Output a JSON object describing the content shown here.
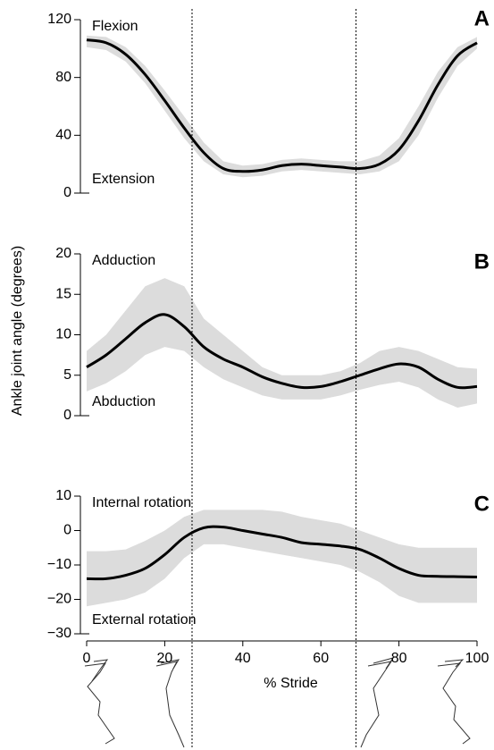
{
  "figure": {
    "ylabel": "Ankle joint angle (degrees)",
    "event_lines": [
      27,
      69
    ]
  },
  "chart_data": [
    {
      "type": "line",
      "panel": "A",
      "top_label": "Flexion",
      "bottom_label": "Extension",
      "x": [
        0,
        5,
        10,
        15,
        20,
        25,
        30,
        35,
        40,
        45,
        50,
        55,
        60,
        65,
        70,
        75,
        80,
        85,
        90,
        95,
        100
      ],
      "xlim": [
        0,
        100
      ],
      "ylim": [
        0,
        120
      ],
      "yticks": [
        0,
        40,
        80,
        120
      ],
      "series": [
        {
          "color": "#000000",
          "band_color": "#dcdcdc",
          "values": [
            106,
            104,
            96,
            82,
            64,
            45,
            28,
            17,
            15,
            16,
            19,
            20,
            19,
            18,
            17,
            20,
            30,
            50,
            75,
            95,
            104
          ],
          "lower": [
            101,
            99,
            91,
            76,
            57,
            38,
            22,
            13,
            11,
            12,
            15,
            16,
            15,
            14,
            13,
            15,
            22,
            40,
            66,
            88,
            100
          ],
          "upper": [
            109,
            108,
            101,
            88,
            71,
            53,
            35,
            22,
            19,
            20,
            23,
            24,
            23,
            22,
            22,
            26,
            38,
            60,
            84,
            101,
            108
          ]
        }
      ]
    },
    {
      "type": "line",
      "panel": "B",
      "top_label": "Adduction",
      "bottom_label": "Abduction",
      "x": [
        0,
        5,
        10,
        15,
        20,
        25,
        30,
        35,
        40,
        45,
        50,
        55,
        60,
        65,
        70,
        75,
        80,
        85,
        90,
        95,
        100
      ],
      "xlim": [
        0,
        100
      ],
      "ylim": [
        0,
        20
      ],
      "yticks": [
        0,
        5,
        10,
        15,
        20
      ],
      "series": [
        {
          "color": "#000000",
          "band_color": "#dcdcdc",
          "values": [
            6,
            7.5,
            9.5,
            11.5,
            12.5,
            11,
            8.5,
            7,
            6,
            4.8,
            4,
            3.5,
            3.6,
            4.2,
            5,
            5.8,
            6.4,
            6,
            4.5,
            3.5,
            3.6
          ],
          "lower": [
            3,
            4,
            5.5,
            7.5,
            8.5,
            8,
            6,
            4.5,
            3.5,
            2.5,
            2,
            2,
            2,
            2.5,
            3.2,
            3.8,
            4.2,
            3.5,
            2,
            1,
            1.5
          ],
          "upper": [
            8,
            10,
            13,
            16,
            17,
            16,
            12,
            10,
            8,
            6,
            5,
            5,
            5,
            5.5,
            6.5,
            8,
            8.5,
            8,
            7,
            6,
            5.8
          ]
        }
      ]
    },
    {
      "type": "line",
      "panel": "C",
      "top_label": "Internal rotation",
      "bottom_label": "External rotation",
      "x": [
        0,
        5,
        10,
        15,
        20,
        25,
        30,
        35,
        40,
        45,
        50,
        55,
        60,
        65,
        70,
        75,
        80,
        85,
        90,
        95,
        100
      ],
      "xlabel": "% Stride",
      "xlim": [
        0,
        100
      ],
      "xticks": [
        0,
        20,
        40,
        60,
        80,
        100
      ],
      "ylim": [
        -30,
        10
      ],
      "yticks": [
        {
          "value": -30,
          "label": "−30"
        },
        {
          "value": -20,
          "label": "−20"
        },
        {
          "value": -10,
          "label": "−10"
        },
        0,
        10
      ],
      "series": [
        {
          "color": "#000000",
          "band_color": "#dcdcdc",
          "values": [
            -14,
            -14,
            -13,
            -11,
            -7,
            -2,
            0.8,
            1,
            0,
            -1,
            -2,
            -3.5,
            -4,
            -4.5,
            -5.5,
            -8,
            -11,
            -13,
            -13.3,
            -13.4,
            -13.5
          ],
          "lower": [
            -22,
            -21,
            -20,
            -18,
            -14,
            -8,
            -4,
            -4,
            -5,
            -6,
            -7,
            -8,
            -9,
            -10,
            -12,
            -15,
            -19,
            -21,
            -21,
            -21,
            -21
          ],
          "upper": [
            -6,
            -6,
            -5.5,
            -3,
            0,
            4,
            6,
            6,
            6,
            6,
            5.5,
            4,
            3,
            2,
            0,
            -2,
            -4,
            -5,
            -5,
            -5,
            -5
          ]
        }
      ]
    }
  ]
}
